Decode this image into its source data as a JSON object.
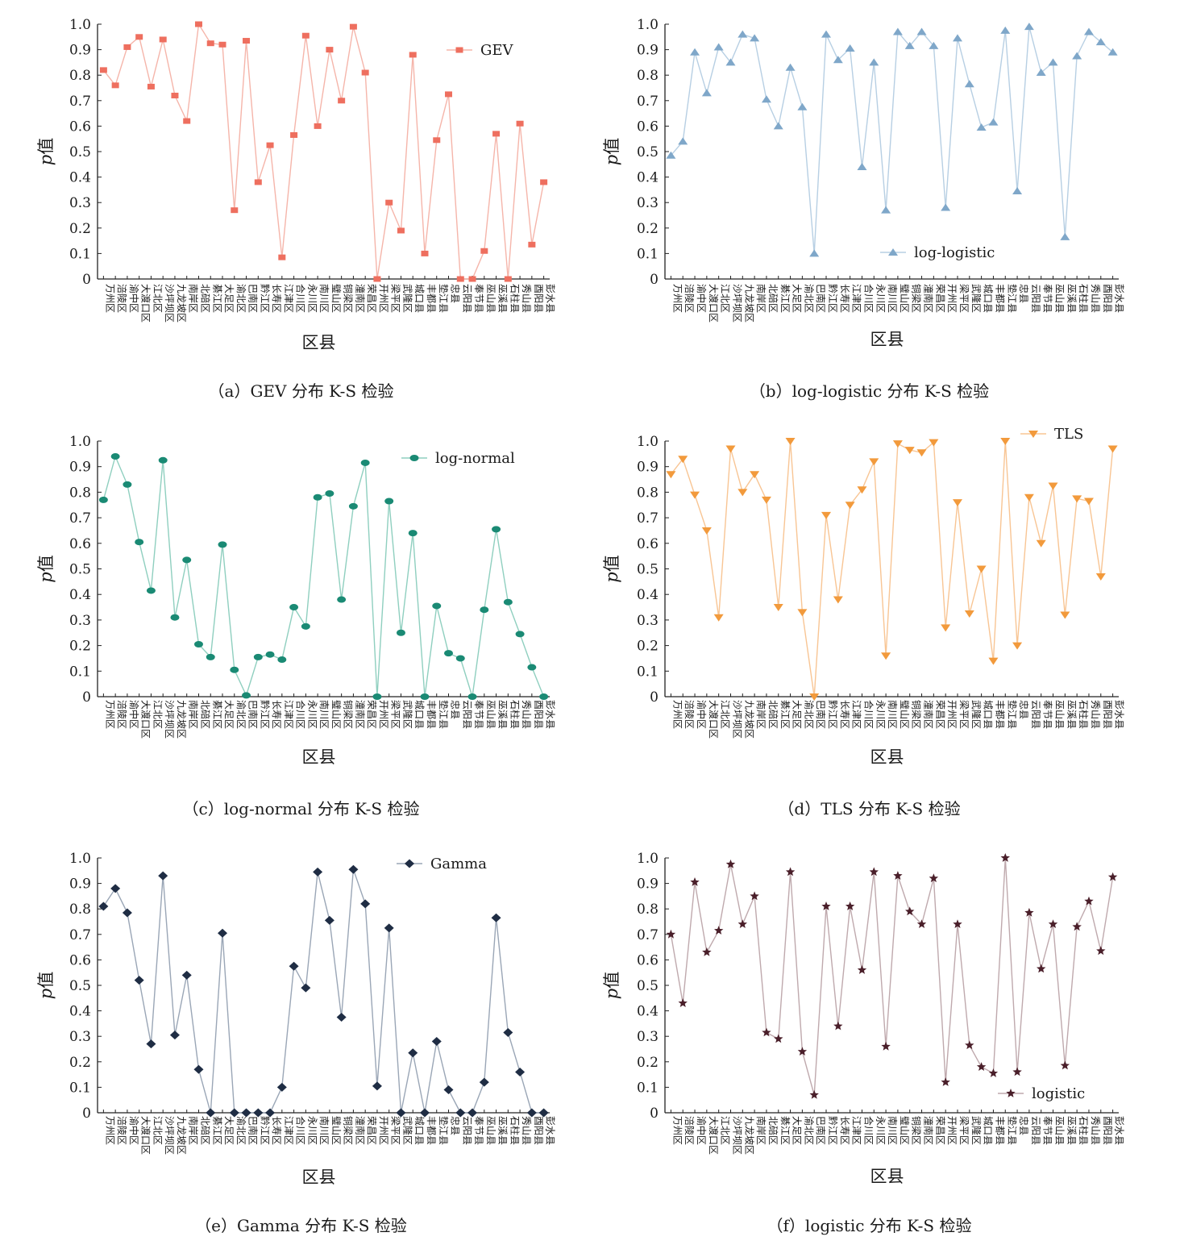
{
  "figure": {
    "categories": [
      "万州区",
      "涪陵区",
      "渝中区",
      "大渡口区",
      "江北区",
      "沙坪坝区",
      "九龙坡区",
      "南岸区",
      "北碚区",
      "綦江区",
      "大足区",
      "渝北区",
      "巴南区",
      "黔江区",
      "长寿区",
      "江津区",
      "合川区",
      "永川区",
      "南川区",
      "璧山区",
      "铜梁区",
      "潼南区",
      "荣昌区",
      "开州区",
      "梁平区",
      "武隆区",
      "城口县",
      "丰都县",
      "垫江县",
      "忠县",
      "云阳县",
      "奉节县",
      "巫山县",
      "巫溪县",
      "石柱县",
      "秀山县",
      "酉阳县",
      "彭水县"
    ]
  },
  "chart_data": [
    {
      "type": "line",
      "caption": "（a）GEV 分布 K-S 检验",
      "xlabel": "区县",
      "ylabel_prefix": "p",
      "ylabel_suffix": "值",
      "ylim": [
        0,
        1.0
      ],
      "yticks": [
        "0",
        "0.1",
        "0.2",
        "0.3",
        "0.4",
        "0.5",
        "0.6",
        "0.7",
        "0.8",
        "0.9",
        "1.0"
      ],
      "legend_position": "top-right",
      "marker": "square",
      "color": "#ee6f5f",
      "line_color": "#f5b5aa",
      "series": [
        {
          "name": "GEV",
          "values": [
            0.82,
            0.76,
            0.91,
            0.95,
            0.755,
            0.94,
            0.72,
            0.62,
            1.0,
            0.925,
            0.92,
            0.27,
            0.935,
            0.38,
            0.525,
            0.085,
            0.565,
            0.955,
            0.6,
            0.9,
            0.7,
            0.99,
            0.81,
            0,
            0.3,
            0.19,
            0.88,
            0.1,
            0.545,
            0.725,
            0,
            0,
            0.11,
            0.57,
            0,
            0.61,
            0.135,
            0.38
          ]
        }
      ]
    },
    {
      "type": "line",
      "caption": "（b）log-logistic 分布 K-S 检验",
      "xlabel": "区县",
      "ylabel_prefix": "p",
      "ylabel_suffix": "值",
      "ylim": [
        0,
        1.0
      ],
      "yticks": [
        "0",
        "0.1",
        "0.2",
        "0.3",
        "0.4",
        "0.5",
        "0.6",
        "0.7",
        "0.8",
        "0.9",
        "1.0"
      ],
      "legend_position": "bottom-center",
      "marker": "triangle-up",
      "color": "#7fa7c9",
      "line_color": "#b7cfe3",
      "series": [
        {
          "name": "log-logistic",
          "values": [
            0.485,
            0.54,
            0.89,
            0.73,
            0.91,
            0.85,
            0.96,
            0.945,
            0.705,
            0.6,
            0.83,
            0.675,
            0.1,
            0.96,
            0.86,
            0.905,
            0.44,
            0.85,
            0.27,
            0.97,
            0.915,
            0.97,
            0.915,
            0.28,
            0.945,
            0.765,
            0.595,
            0.615,
            0.975,
            0.345,
            0.99,
            0.81,
            0.85,
            0.165,
            0.875,
            0.97,
            0.93,
            0.89
          ]
        }
      ]
    },
    {
      "type": "line",
      "caption": "（c）log-normal 分布 K-S 检验",
      "xlabel": "区县",
      "ylabel_prefix": "p",
      "ylabel_suffix": "值",
      "ylim": [
        0,
        1.0
      ],
      "yticks": [
        "0",
        "0.1",
        "0.2",
        "0.3",
        "0.4",
        "0.5",
        "0.6",
        "0.7",
        "0.8",
        "0.9",
        "1.0"
      ],
      "legend_position": "top-right",
      "marker": "ellipse",
      "color": "#1a8a74",
      "line_color": "#8fcfbf",
      "series": [
        {
          "name": "log-normal",
          "values": [
            0.77,
            0.94,
            0.83,
            0.605,
            0.415,
            0.925,
            0.31,
            0.535,
            0.205,
            0.155,
            0.595,
            0.105,
            0.005,
            0.155,
            0.165,
            0.145,
            0.35,
            0.275,
            0.78,
            0.795,
            0.38,
            0.745,
            0.915,
            0,
            0.765,
            0.25,
            0.64,
            0,
            0.355,
            0.17,
            0.15,
            0,
            0.34,
            0.655,
            0.37,
            0.245,
            0.115,
            0
          ]
        }
      ]
    },
    {
      "type": "line",
      "caption": "（d）TLS 分布 K-S 检验",
      "xlabel": "区县",
      "ylabel_prefix": "p",
      "ylabel_suffix": "值",
      "ylim": [
        0,
        1.0
      ],
      "yticks": [
        "0",
        "0.1",
        "0.2",
        "0.3",
        "0.4",
        "0.5",
        "0.6",
        "0.7",
        "0.8",
        "0.9",
        "1.0"
      ],
      "legend_position": "top-right",
      "marker": "triangle-down",
      "color": "#f29a3c",
      "line_color": "#f8c594",
      "series": [
        {
          "name": "TLS",
          "values": [
            0.87,
            0.93,
            0.79,
            0.65,
            0.31,
            0.97,
            0.8,
            0.87,
            0.77,
            0.35,
            1.0,
            0.33,
            0,
            0.71,
            0.38,
            0.75,
            0.81,
            0.92,
            0.16,
            0.99,
            0.965,
            0.955,
            0.995,
            0.27,
            0.76,
            0.325,
            0.5,
            0.14,
            1.0,
            0.2,
            0.78,
            0.6,
            0.825,
            0.32,
            0.775,
            0.765,
            0.47,
            0.97
          ]
        }
      ]
    },
    {
      "type": "line",
      "caption": "（e）Gamma 分布 K-S 检验",
      "xlabel": "区县",
      "ylabel_prefix": "p",
      "ylabel_suffix": "值",
      "ylim": [
        0,
        1.0
      ],
      "yticks": [
        "0",
        "0.1",
        "0.2",
        "0.3",
        "0.4",
        "0.5",
        "0.6",
        "0.7",
        "0.8",
        "0.9",
        "1.0"
      ],
      "legend_position": "top-right",
      "marker": "diamond",
      "color": "#1f2d44",
      "line_color": "#9aa6b6",
      "series": [
        {
          "name": "Gamma",
          "values": [
            0.81,
            0.88,
            0.785,
            0.52,
            0.27,
            0.93,
            0.305,
            0.54,
            0.17,
            0,
            0.705,
            0,
            0,
            0,
            0,
            0.1,
            0.575,
            0.49,
            0.945,
            0.755,
            0.375,
            0.955,
            0.82,
            0.105,
            0.725,
            0,
            0.235,
            0,
            0.28,
            0.09,
            0,
            0,
            0.12,
            0.765,
            0.315,
            0.16,
            0,
            0
          ]
        }
      ]
    },
    {
      "type": "line",
      "caption": "（f）logistic 分布 K-S 检验",
      "xlabel": "区县",
      "ylabel_prefix": "p",
      "ylabel_suffix": "值",
      "ylim": [
        0,
        1.0
      ],
      "yticks": [
        "0",
        "0.1",
        "0.2",
        "0.3",
        "0.4",
        "0.5",
        "0.6",
        "0.7",
        "0.8",
        "0.9",
        "1.0"
      ],
      "legend_position": "bottom-right",
      "marker": "star",
      "color": "#4a1f2a",
      "line_color": "#bfa9ad",
      "series": [
        {
          "name": "logistic",
          "values": [
            0.7,
            0.43,
            0.905,
            0.63,
            0.715,
            0.975,
            0.74,
            0.85,
            0.315,
            0.29,
            0.945,
            0.24,
            0.07,
            0.81,
            0.34,
            0.81,
            0.56,
            0.945,
            0.26,
            0.93,
            0.79,
            0.74,
            0.92,
            0.12,
            0.74,
            0.265,
            0.18,
            0.155,
            1.0,
            0.16,
            0.785,
            0.565,
            0.74,
            0.185,
            0.73,
            0.83,
            0.635,
            0.925
          ]
        }
      ]
    }
  ]
}
